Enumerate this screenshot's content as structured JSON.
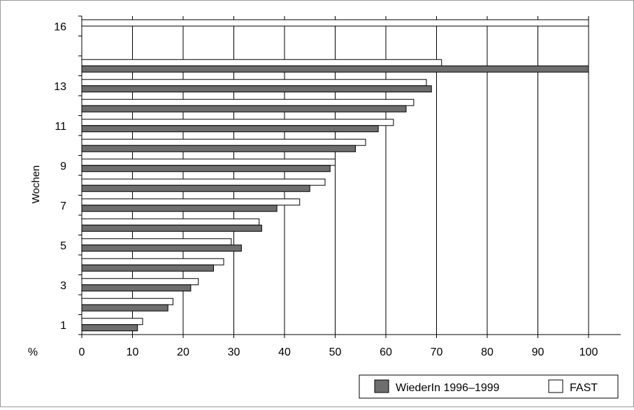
{
  "chart_data": {
    "type": "bar",
    "orientation": "horizontal",
    "categories": [
      "1",
      "2",
      "3",
      "4",
      "5",
      "6",
      "7",
      "8",
      "9",
      "10",
      "11",
      "12",
      "13",
      "14",
      "15",
      "16"
    ],
    "y_tick_labels": [
      "1",
      "3",
      "5",
      "7",
      "9",
      "11",
      "13",
      "16"
    ],
    "ylabel": "Wochen",
    "xlabel": "%",
    "x_ticks": [
      "0",
      "10",
      "20",
      "30",
      "40",
      "50",
      "60",
      "70",
      "80",
      "90",
      "100"
    ],
    "xlim": [
      0,
      106
    ],
    "grid": "vertical",
    "series": [
      {
        "name": "WiederIn 1996–1999",
        "color": "#6e6e6e",
        "values": [
          11,
          17,
          21.5,
          26,
          31.5,
          35.5,
          38.5,
          45,
          49,
          54,
          58.5,
          64,
          69,
          100,
          null,
          null
        ]
      },
      {
        "name": "FAST",
        "color": "#ffffff",
        "values": [
          12,
          18,
          23,
          28,
          29.5,
          35,
          43,
          48,
          50,
          56,
          61.5,
          65.5,
          68,
          71,
          null,
          100
        ]
      }
    ],
    "legend_position": "bottom-right"
  }
}
